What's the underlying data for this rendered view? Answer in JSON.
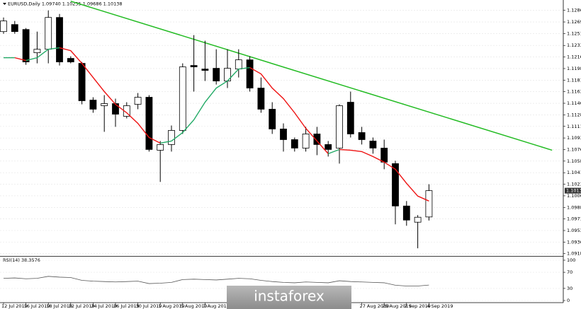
{
  "chart_data": {
    "type": "candlestick",
    "title": "EURUSD,Daily  1.09740 1.10235 1.09686 1.10138",
    "categories": [
      "12 Jul 2019",
      null,
      "16 Jul 2019",
      null,
      "18 Jul 2019",
      null,
      "22 Jul 2019",
      null,
      "24 Jul 2019",
      null,
      "26 Jul 2019",
      null,
      "30 Jul 2019",
      null,
      "1 Aug 2019",
      null,
      "5 Aug 2019",
      null,
      "7 Aug 2019",
      null,
      null,
      null,
      null,
      null,
      null,
      null,
      null,
      null,
      null,
      null,
      null,
      null,
      "27 Aug 2019",
      null,
      "29 Aug 2019",
      null,
      "2 Sep 2019",
      null,
      "4 Sep 2019"
    ],
    "open": [
      1.12544,
      1.12651,
      1.12576,
      1.12224,
      1.12277,
      1.12758,
      1.12139,
      1.12064,
      1.11508,
      1.11423,
      1.11455,
      1.11263,
      1.11444,
      1.11551,
      1.1075,
      1.10836,
      1.11049,
      1.12032,
      1.11978,
      1.11989,
      1.11797,
      1.11978,
      1.12117,
      1.1169,
      1.1137,
      1.11071,
      1.1091,
      1.10782,
      1.10996,
      1.10836,
      1.10782,
      1.11476,
      1.11017,
      1.10889,
      1.10782,
      1.10547,
      1.09906,
      1.09661,
      1.0974
    ],
    "high": [
      1.12758,
      1.12705,
      1.12598,
      1.12544,
      1.12865,
      1.12811,
      1.12171,
      1.12085,
      1.11551,
      1.11583,
      1.1153,
      1.11476,
      1.11615,
      1.11583,
      1.10889,
      1.11124,
      1.12064,
      1.12491,
      1.12406,
      1.12277,
      1.12277,
      1.12277,
      1.12171,
      1.1185,
      1.11476,
      1.11156,
      1.10942,
      1.11103,
      1.11103,
      1.10889,
      1.11444,
      1.11637,
      1.11103,
      1.10942,
      1.1091,
      1.1059,
      1.09981,
      1.09768,
      1.10235
    ],
    "low": [
      1.12512,
      1.12512,
      1.12042,
      1.12064,
      1.12064,
      1.12032,
      1.12064,
      1.11444,
      1.11316,
      1.11028,
      1.11103,
      1.11231,
      1.1137,
      1.10729,
      1.1027,
      1.10729,
      1.10996,
      1.11637,
      1.11797,
      1.11743,
      1.1169,
      1.1185,
      1.11637,
      1.11316,
      1.10996,
      1.10729,
      1.10729,
      1.10729,
      1.10675,
      1.10654,
      1.10547,
      1.10942,
      1.10836,
      1.10697,
      1.10462,
      1.09629,
      1.09607,
      1.09266,
      1.09686
    ],
    "close": [
      1.12705,
      1.12544,
      1.12085,
      1.12277,
      1.12758,
      1.12085,
      1.12085,
      1.11498,
      1.1137,
      1.11455,
      1.11295,
      1.11423,
      1.11551,
      1.10761,
      1.10836,
      1.11049,
      1.1201,
      1.1201,
      1.11957,
      1.11797,
      1.11989,
      1.12117,
      1.1169,
      1.1137,
      1.11071,
      1.1091,
      1.10782,
      1.10996,
      1.10836,
      1.10761,
      1.11423,
      1.10996,
      1.1091,
      1.10782,
      1.10569,
      1.09906,
      1.09693,
      1.09736,
      1.10138
    ],
    "up_color": "#ffffff",
    "down_color": "#000000",
    "ylim": [
      1.0915,
      1.1299
    ],
    "yticks": [
      1.12865,
      {
        "value": 1.1269,
        "label": "1.12690"
      },
      1.12515,
      1.12335,
      {
        "value": 1.1216,
        "label": "1.12160"
      },
      1.11985,
      {
        "value": 1.1181,
        "label": "1.11810"
      },
      1.11635,
      {
        "value": 1.1146,
        "label": "1.11460"
      },
      1.11285,
      {
        "value": 1.1111,
        "label": "1.11110"
      },
      1.10935,
      {
        "value": 1.1076,
        "label": "1.10760"
      },
      1.10585,
      {
        "value": 1.1041,
        "label": "1.10410"
      },
      1.10235,
      {
        "value": 1.1006,
        "label": "1.10060"
      },
      1.09885,
      {
        "value": 1.0971,
        "label": "1.09710"
      },
      1.09535,
      {
        "value": 1.0936,
        "label": "1.09360"
      },
      1.09185
    ],
    "grid": true,
    "moving_average": {
      "up_color": "#22aa66",
      "down_color": "#ee1111",
      "values": [
        1.12149,
        1.12149,
        1.12107,
        1.12149,
        1.12277,
        1.12299,
        1.12256,
        1.12064,
        1.1185,
        1.11637,
        1.11444,
        1.11316,
        1.11156,
        1.10942,
        1.10857,
        1.10889,
        1.11017,
        1.11209,
        1.11476,
        1.1169,
        1.11797,
        1.11978,
        1.12,
        1.11904,
        1.1169,
        1.1153,
        1.11316,
        1.11081,
        1.10889,
        1.10697,
        1.10761,
        1.1075,
        1.10729,
        1.10654,
        1.10569,
        1.10462,
        1.10248,
        1.10056,
        1.09981
      ]
    },
    "trendline": {
      "x": [
        6,
        49
      ],
      "values": [
        1.13004,
        1.1075
      ],
      "color": "#22bb22"
    },
    "rsi": {
      "label": "RSI(14) 38.3576",
      "color": "#555555",
      "ylim": [
        0,
        100
      ],
      "yticks": [
        100,
        70,
        30,
        0
      ],
      "values": [
        55,
        56,
        54,
        55,
        60,
        58,
        57,
        50,
        48,
        47,
        46,
        47,
        48,
        42,
        43,
        45,
        52,
        53,
        52,
        51,
        53,
        55,
        54,
        50,
        47,
        45,
        44,
        46,
        45,
        44,
        49,
        47,
        46,
        45,
        44,
        38,
        36,
        36,
        38.3576
      ]
    },
    "watermark": "instaforex"
  }
}
